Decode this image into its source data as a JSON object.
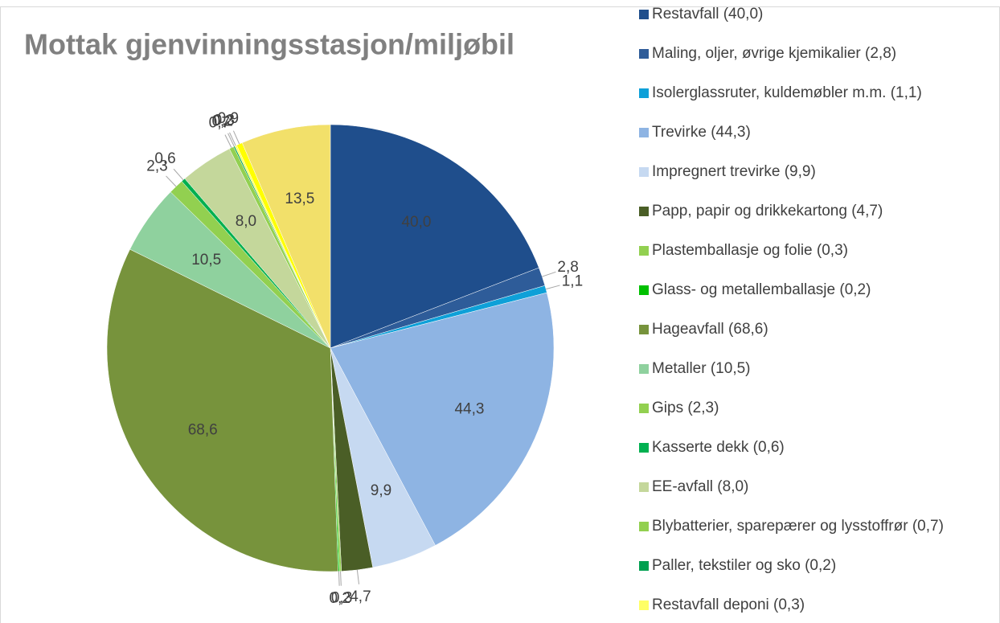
{
  "chart_data": {
    "type": "pie",
    "title": "Mottak gjenvinningsstasjon/miljøbil",
    "categories": [
      "Restavfall (40,0)",
      "Maling, oljer, øvrige kjemikalier (2,8)",
      "Isolerglassruter, kuldemøbler m.m. (1,1)",
      "Trevirke (44,3)",
      "Impregnert trevirke (9,9)",
      "Papp, papir og drikkekartong (4,7)",
      "Plastemballasje og folie (0,3)",
      "Glass- og metallemballasje (0,2)",
      "Hageavfall (68,6)",
      "Metaller (10,5)",
      "Gips (2,3)",
      "Kasserte dekk (0,6)",
      "EE-avfall (8,0)",
      "Blybatterier, sparepærer og lysstoffrør (0,7)",
      "Paller, tekstiler og sko (0,2)",
      "Restavfall deponi (0,3)",
      null,
      null
    ],
    "values": [
      40.0,
      2.8,
      1.1,
      44.3,
      9.9,
      4.7,
      0.3,
      0.2,
      68.6,
      10.5,
      2.3,
      0.6,
      8.0,
      0.7,
      0.2,
      0.3,
      0.9,
      13.5
    ],
    "value_labels": [
      "40,0",
      "2,8",
      "1,1",
      "44,3",
      "9,9",
      "4,7",
      "0,3",
      "0,2",
      "68,6",
      "10,5",
      "2,3",
      "0,6",
      "8,0",
      "0,7",
      "0,2",
      "0,3",
      "0,9",
      "13,5"
    ],
    "colors": [
      "#1f4e8c",
      "#2e5c99",
      "#0ea0d8",
      "#8eb4e3",
      "#c6d9f1",
      "#4a5e26",
      "#92d050",
      "#00c000",
      "#77933c",
      "#8fd19e",
      "#92d050",
      "#00b050",
      "#c4d79b",
      "#92d050",
      "#00a050",
      "#ffff66",
      "#ffff00",
      "#f2e06a"
    ]
  }
}
